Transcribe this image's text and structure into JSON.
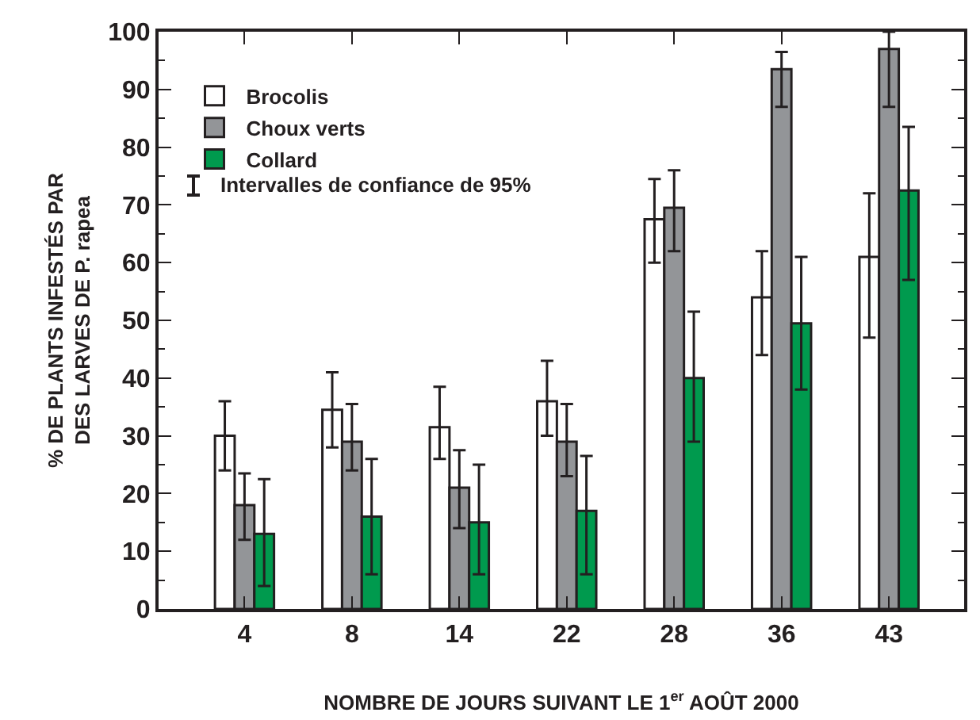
{
  "chart_data": {
    "type": "bar",
    "xlabel": "NOMBRE DE JOURS SUIVANT LE 1$^{er}$ AOÛT 2000",
    "ylabel": "% DE PLANTS INFESTÉS PAR\nDES LARVES DE P. rapea",
    "categories": [
      "4",
      "8",
      "14",
      "22",
      "28",
      "36",
      "43"
    ],
    "series": [
      {
        "name": "Brocolis",
        "color": "#ffffff",
        "values": [
          30,
          34.5,
          31.5,
          36,
          67.5,
          54,
          61
        ],
        "errors": [
          [
            24,
            36
          ],
          [
            28,
            41
          ],
          [
            26,
            38.5
          ],
          [
            30,
            43
          ],
          [
            60,
            74.5
          ],
          [
            44,
            62
          ],
          [
            47,
            72
          ]
        ]
      },
      {
        "name": "Choux verts",
        "color": "#939598",
        "values": [
          18,
          29,
          21,
          29,
          69.5,
          93.5,
          97
        ],
        "errors": [
          [
            12,
            23.5
          ],
          [
            24,
            35.5
          ],
          [
            14,
            27.5
          ],
          [
            23,
            35.5
          ],
          [
            62,
            76
          ],
          [
            87,
            96.5
          ],
          [
            87,
            100
          ]
        ]
      },
      {
        "name": "Collard",
        "color": "#009a4e",
        "values": [
          13,
          16,
          15,
          17,
          40,
          49.5,
          72.5
        ],
        "errors": [
          [
            4,
            22.5
          ],
          [
            6,
            26
          ],
          [
            6,
            25
          ],
          [
            6,
            26.5
          ],
          [
            29,
            51.5
          ],
          [
            38,
            61
          ],
          [
            57,
            83.5
          ]
        ]
      }
    ],
    "annotations": [
      "Intervalles de confiance de 95%"
    ],
    "ylim": [
      0,
      100
    ],
    "yticks": [
      0,
      10,
      20,
      30,
      40,
      50,
      60,
      70,
      80,
      90,
      100
    ],
    "grid": false,
    "legend": "top left"
  }
}
